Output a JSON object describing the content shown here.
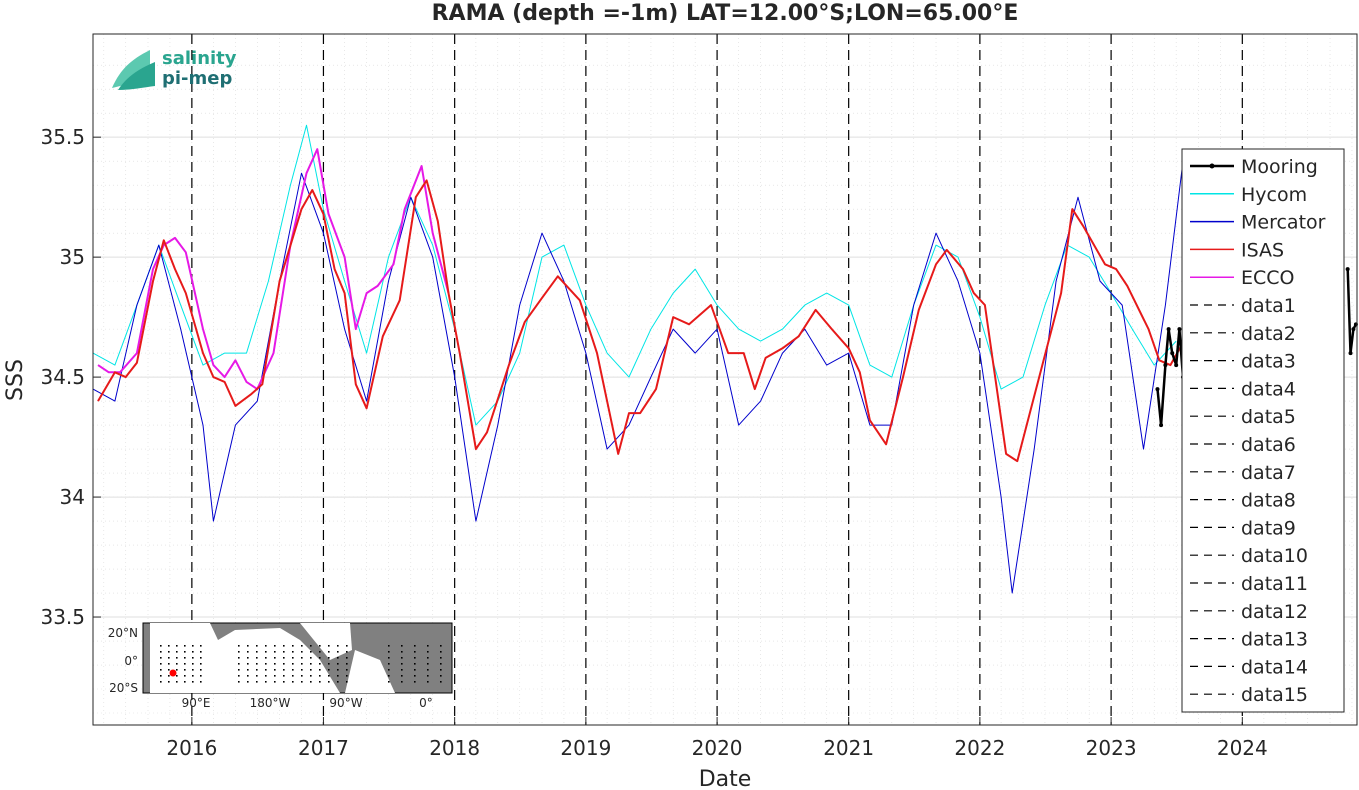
{
  "chart_data": {
    "type": "line",
    "title": "RAMA (depth =-1m) LAT=12.00°S;LON=65.00°E",
    "xlabel": "Date",
    "ylabel": "SSS",
    "xlim": [
      "2015-04-01",
      "2024-11-15"
    ],
    "ylim": [
      33.05,
      35.93
    ],
    "x_ticks": [
      "2016",
      "2017",
      "2018",
      "2019",
      "2020",
      "2021",
      "2022",
      "2023",
      "2024"
    ],
    "y_ticks": [
      "33.5",
      "34",
      "34.5",
      "35",
      "35.5"
    ],
    "grid": true,
    "vertical_dashed_lines_at": [
      "2016-01-01",
      "2017-01-01",
      "2018-01-01",
      "2019-01-01",
      "2020-01-01",
      "2021-01-01",
      "2022-01-01",
      "2023-01-01",
      "2024-01-01"
    ],
    "legend_position": "right",
    "series": [
      {
        "name": "Mooring",
        "color": "#000000",
        "style": "solid-dots",
        "points": [
          [
            "2023-05-10",
            34.45
          ],
          [
            "2023-05-20",
            34.3
          ],
          [
            "2023-06-01",
            34.55
          ],
          [
            "2023-06-10",
            34.7
          ],
          [
            "2023-06-20",
            34.6
          ],
          [
            "2023-07-01",
            34.55
          ],
          [
            "2023-07-10",
            34.7
          ],
          [
            "2023-07-20",
            34.5
          ],
          [
            "2023-08-01",
            34.6
          ],
          [
            "2023-08-15",
            34.7
          ],
          [
            "2024-10-20",
            34.95
          ],
          [
            "2024-10-28",
            34.6
          ],
          [
            "2024-11-05",
            34.7
          ],
          [
            "2024-11-12",
            34.72
          ]
        ]
      },
      {
        "name": "Hycom",
        "color": "#00e5e5",
        "style": "solid",
        "points": [
          [
            "2015-04-01",
            34.6
          ],
          [
            "2015-06-01",
            34.55
          ],
          [
            "2015-08-01",
            34.8
          ],
          [
            "2015-10-01",
            35.05
          ],
          [
            "2015-12-01",
            34.8
          ],
          [
            "2016-02-01",
            34.55
          ],
          [
            "2016-04-01",
            34.6
          ],
          [
            "2016-06-01",
            34.6
          ],
          [
            "2016-08-01",
            34.9
          ],
          [
            "2016-10-01",
            35.3
          ],
          [
            "2016-11-15",
            35.55
          ],
          [
            "2017-01-01",
            35.2
          ],
          [
            "2017-03-01",
            34.9
          ],
          [
            "2017-05-01",
            34.6
          ],
          [
            "2017-07-01",
            35.0
          ],
          [
            "2017-09-01",
            35.25
          ],
          [
            "2017-11-01",
            35.05
          ],
          [
            "2018-01-01",
            34.7
          ],
          [
            "2018-03-01",
            34.3
          ],
          [
            "2018-05-01",
            34.4
          ],
          [
            "2018-07-01",
            34.6
          ],
          [
            "2018-09-01",
            35.0
          ],
          [
            "2018-11-01",
            35.05
          ],
          [
            "2019-01-01",
            34.8
          ],
          [
            "2019-03-01",
            34.6
          ],
          [
            "2019-05-01",
            34.5
          ],
          [
            "2019-07-01",
            34.7
          ],
          [
            "2019-09-01",
            34.85
          ],
          [
            "2019-11-01",
            34.95
          ],
          [
            "2020-01-01",
            34.8
          ],
          [
            "2020-03-01",
            34.7
          ],
          [
            "2020-05-01",
            34.65
          ],
          [
            "2020-07-01",
            34.7
          ],
          [
            "2020-09-01",
            34.8
          ],
          [
            "2020-11-01",
            34.85
          ],
          [
            "2021-01-01",
            34.8
          ],
          [
            "2021-03-01",
            34.55
          ],
          [
            "2021-05-01",
            34.5
          ],
          [
            "2021-07-01",
            34.8
          ],
          [
            "2021-09-01",
            35.05
          ],
          [
            "2021-11-01",
            35.0
          ],
          [
            "2022-01-01",
            34.75
          ],
          [
            "2022-03-01",
            34.45
          ],
          [
            "2022-05-01",
            34.5
          ],
          [
            "2022-07-01",
            34.8
          ],
          [
            "2022-09-01",
            35.05
          ],
          [
            "2022-11-01",
            35.0
          ],
          [
            "2023-01-01",
            34.85
          ],
          [
            "2023-03-01",
            34.7
          ],
          [
            "2023-05-01",
            34.55
          ],
          [
            "2023-07-01",
            34.65
          ]
        ]
      },
      {
        "name": "Mercator",
        "color": "#0000cc",
        "style": "solid",
        "points": [
          [
            "2015-04-01",
            34.45
          ],
          [
            "2015-06-01",
            34.4
          ],
          [
            "2015-08-01",
            34.8
          ],
          [
            "2015-10-01",
            35.05
          ],
          [
            "2015-12-01",
            34.7
          ],
          [
            "2016-02-01",
            34.3
          ],
          [
            "2016-03-01",
            33.9
          ],
          [
            "2016-05-01",
            34.3
          ],
          [
            "2016-07-01",
            34.4
          ],
          [
            "2016-09-01",
            34.9
          ],
          [
            "2016-11-01",
            35.35
          ],
          [
            "2017-01-01",
            35.1
          ],
          [
            "2017-03-01",
            34.7
          ],
          [
            "2017-05-01",
            34.4
          ],
          [
            "2017-07-01",
            34.9
          ],
          [
            "2017-09-01",
            35.25
          ],
          [
            "2017-11-01",
            35.0
          ],
          [
            "2018-01-01",
            34.5
          ],
          [
            "2018-03-01",
            33.9
          ],
          [
            "2018-05-01",
            34.3
          ],
          [
            "2018-07-01",
            34.8
          ],
          [
            "2018-09-01",
            35.1
          ],
          [
            "2018-11-01",
            34.9
          ],
          [
            "2019-01-01",
            34.6
          ],
          [
            "2019-03-01",
            34.2
          ],
          [
            "2019-05-01",
            34.3
          ],
          [
            "2019-07-01",
            34.5
          ],
          [
            "2019-09-01",
            34.7
          ],
          [
            "2019-11-01",
            34.6
          ],
          [
            "2020-01-01",
            34.7
          ],
          [
            "2020-03-01",
            34.3
          ],
          [
            "2020-05-01",
            34.4
          ],
          [
            "2020-07-01",
            34.6
          ],
          [
            "2020-09-01",
            34.7
          ],
          [
            "2020-11-01",
            34.55
          ],
          [
            "2021-01-01",
            34.6
          ],
          [
            "2021-03-01",
            34.3
          ],
          [
            "2021-05-01",
            34.3
          ],
          [
            "2021-07-01",
            34.8
          ],
          [
            "2021-09-01",
            35.1
          ],
          [
            "2021-11-01",
            34.9
          ],
          [
            "2022-01-01",
            34.6
          ],
          [
            "2022-03-01",
            34.0
          ],
          [
            "2022-04-01",
            33.6
          ],
          [
            "2022-06-01",
            34.2
          ],
          [
            "2022-08-01",
            34.9
          ],
          [
            "2022-10-01",
            35.25
          ],
          [
            "2022-12-01",
            34.9
          ],
          [
            "2023-02-01",
            34.8
          ],
          [
            "2023-04-01",
            34.2
          ],
          [
            "2023-06-01",
            34.8
          ],
          [
            "2023-07-20",
            35.4
          ]
        ]
      },
      {
        "name": "ISAS",
        "color": "#e61a1a",
        "style": "solid",
        "points": [
          [
            "2015-04-15",
            34.4
          ],
          [
            "2015-06-01",
            34.52
          ],
          [
            "2015-07-01",
            34.5
          ],
          [
            "2015-08-01",
            34.56
          ],
          [
            "2015-09-15",
            34.9
          ],
          [
            "2015-10-15",
            35.07
          ],
          [
            "2015-11-15",
            34.95
          ],
          [
            "2015-12-15",
            34.85
          ],
          [
            "2016-02-01",
            34.6
          ],
          [
            "2016-03-01",
            34.5
          ],
          [
            "2016-04-01",
            34.48
          ],
          [
            "2016-05-01",
            34.38
          ],
          [
            "2016-06-15",
            34.43
          ],
          [
            "2016-07-15",
            34.47
          ],
          [
            "2016-09-01",
            34.9
          ],
          [
            "2016-11-01",
            35.2
          ],
          [
            "2016-12-01",
            35.28
          ],
          [
            "2017-01-01",
            35.18
          ],
          [
            "2017-02-01",
            34.95
          ],
          [
            "2017-03-01",
            34.85
          ],
          [
            "2017-04-01",
            34.47
          ],
          [
            "2017-05-01",
            34.37
          ],
          [
            "2017-06-15",
            34.67
          ],
          [
            "2017-08-01",
            34.82
          ],
          [
            "2017-09-15",
            35.25
          ],
          [
            "2017-10-15",
            35.32
          ],
          [
            "2017-11-15",
            35.15
          ],
          [
            "2017-12-15",
            34.85
          ],
          [
            "2018-01-15",
            34.6
          ],
          [
            "2018-03-01",
            34.2
          ],
          [
            "2018-04-01",
            34.27
          ],
          [
            "2018-06-01",
            34.55
          ],
          [
            "2018-07-15",
            34.73
          ],
          [
            "2018-09-01",
            34.83
          ],
          [
            "2018-10-15",
            34.92
          ],
          [
            "2018-12-15",
            34.82
          ],
          [
            "2019-02-01",
            34.6
          ],
          [
            "2019-04-01",
            34.18
          ],
          [
            "2019-05-01",
            34.35
          ],
          [
            "2019-06-01",
            34.35
          ],
          [
            "2019-07-15",
            34.45
          ],
          [
            "2019-09-01",
            34.75
          ],
          [
            "2019-10-15",
            34.72
          ],
          [
            "2019-12-15",
            34.8
          ],
          [
            "2020-02-01",
            34.6
          ],
          [
            "2020-03-15",
            34.6
          ],
          [
            "2020-04-15",
            34.45
          ],
          [
            "2020-05-15",
            34.58
          ],
          [
            "2020-07-01",
            34.62
          ],
          [
            "2020-08-15",
            34.67
          ],
          [
            "2020-10-01",
            34.78
          ],
          [
            "2020-11-15",
            34.7
          ],
          [
            "2021-01-01",
            34.62
          ],
          [
            "2021-02-01",
            34.52
          ],
          [
            "2021-03-01",
            34.32
          ],
          [
            "2021-04-15",
            34.22
          ],
          [
            "2021-06-01",
            34.5
          ],
          [
            "2021-07-15",
            34.78
          ],
          [
            "2021-09-01",
            34.97
          ],
          [
            "2021-10-01",
            35.03
          ],
          [
            "2021-11-15",
            34.95
          ],
          [
            "2021-12-15",
            34.85
          ],
          [
            "2022-01-15",
            34.8
          ],
          [
            "2022-03-15",
            34.18
          ],
          [
            "2022-04-15",
            34.15
          ],
          [
            "2022-06-15",
            34.5
          ],
          [
            "2022-08-15",
            34.85
          ],
          [
            "2022-09-15",
            35.2
          ],
          [
            "2022-10-15",
            35.13
          ],
          [
            "2022-12-15",
            34.97
          ],
          [
            "2023-01-15",
            34.95
          ],
          [
            "2023-02-15",
            34.88
          ],
          [
            "2023-04-15",
            34.7
          ],
          [
            "2023-05-15",
            34.57
          ],
          [
            "2023-06-15",
            34.55
          ],
          [
            "2023-07-15",
            34.63
          ],
          [
            "2023-09-01",
            34.75
          ]
        ]
      },
      {
        "name": "ECCO",
        "color": "#e619e6",
        "style": "solid",
        "points": [
          [
            "2015-04-15",
            34.55
          ],
          [
            "2015-05-15",
            34.52
          ],
          [
            "2015-06-15",
            34.52
          ],
          [
            "2015-08-01",
            34.6
          ],
          [
            "2015-09-15",
            34.95
          ],
          [
            "2015-10-15",
            35.05
          ],
          [
            "2015-11-15",
            35.08
          ],
          [
            "2015-12-15",
            35.02
          ],
          [
            "2016-02-01",
            34.7
          ],
          [
            "2016-03-01",
            34.55
          ],
          [
            "2016-04-01",
            34.5
          ],
          [
            "2016-05-01",
            34.57
          ],
          [
            "2016-06-01",
            34.48
          ],
          [
            "2016-07-01",
            34.45
          ],
          [
            "2016-08-15",
            34.6
          ],
          [
            "2016-10-01",
            35.05
          ],
          [
            "2016-11-15",
            35.35
          ],
          [
            "2016-12-15",
            35.45
          ],
          [
            "2017-01-15",
            35.18
          ],
          [
            "2017-03-01",
            35.0
          ],
          [
            "2017-04-01",
            34.7
          ],
          [
            "2017-05-01",
            34.85
          ],
          [
            "2017-06-01",
            34.88
          ],
          [
            "2017-07-15",
            34.97
          ],
          [
            "2017-08-15",
            35.2
          ],
          [
            "2017-10-01",
            35.38
          ],
          [
            "2017-11-01",
            35.1
          ],
          [
            "2017-12-15",
            34.85
          ]
        ]
      }
    ],
    "extra_legend_entries": [
      "data1",
      "data2",
      "data3",
      "data4",
      "data5",
      "data6",
      "data7",
      "data8",
      "data9",
      "data10",
      "data11",
      "data12",
      "data13",
      "data14",
      "data15"
    ]
  },
  "logo": {
    "line1": "salinity",
    "line2": "pi-mep"
  },
  "inset_map": {
    "y_labels": [
      "20°N",
      "0°",
      "20°S"
    ],
    "x_labels": [
      "90°E",
      "180°W",
      "90°W",
      "0°"
    ],
    "marker_color": "#ff0000"
  }
}
